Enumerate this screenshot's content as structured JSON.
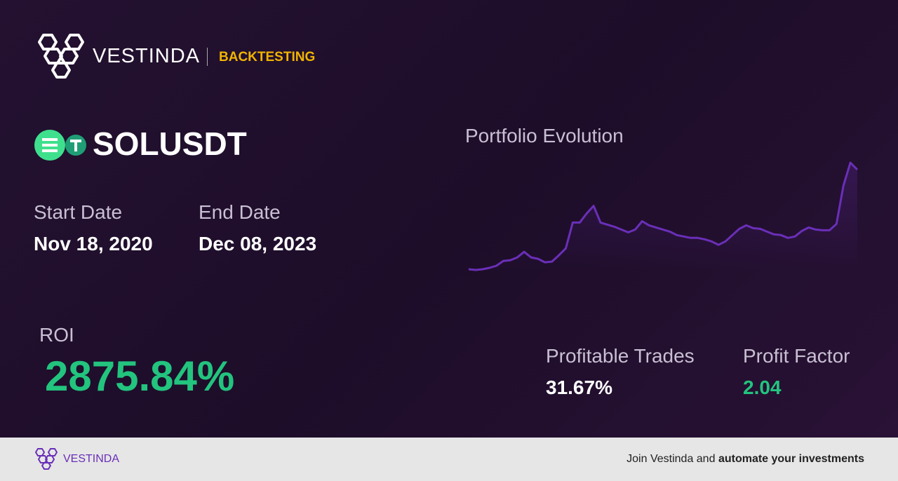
{
  "header": {
    "brand": "VESTINDA",
    "section": "BACKTESTING"
  },
  "pair": "SOLUSDT",
  "start_date": {
    "label": "Start Date",
    "value": "Nov 18, 2020"
  },
  "end_date": {
    "label": "End Date",
    "value": "Dec 08, 2023"
  },
  "roi": {
    "label": "ROI",
    "value": "2875.84%"
  },
  "profitable_trades": {
    "label": "Profitable Trades",
    "value": "31.67%"
  },
  "profit_factor": {
    "label": "Profit Factor",
    "value": "2.04"
  },
  "chart_data": {
    "type": "line",
    "title": "Portfolio Evolution",
    "color": "#6a2fb8",
    "values": [
      5,
      4,
      5,
      7,
      10,
      17,
      18,
      22,
      30,
      22,
      20,
      15,
      16,
      25,
      35,
      72,
      72,
      85,
      96,
      72,
      69,
      66,
      62,
      58,
      62,
      74,
      68,
      65,
      62,
      59,
      54,
      52,
      50,
      50,
      48,
      45,
      40,
      45,
      54,
      63,
      68,
      64,
      63,
      59,
      55,
      54,
      50,
      52,
      60,
      65,
      62,
      61,
      61,
      70,
      125,
      158,
      148
    ]
  },
  "footer": {
    "brand": "VESTINDA",
    "text": "Join Vestinda and",
    "text_bold": "automate your investments"
  }
}
